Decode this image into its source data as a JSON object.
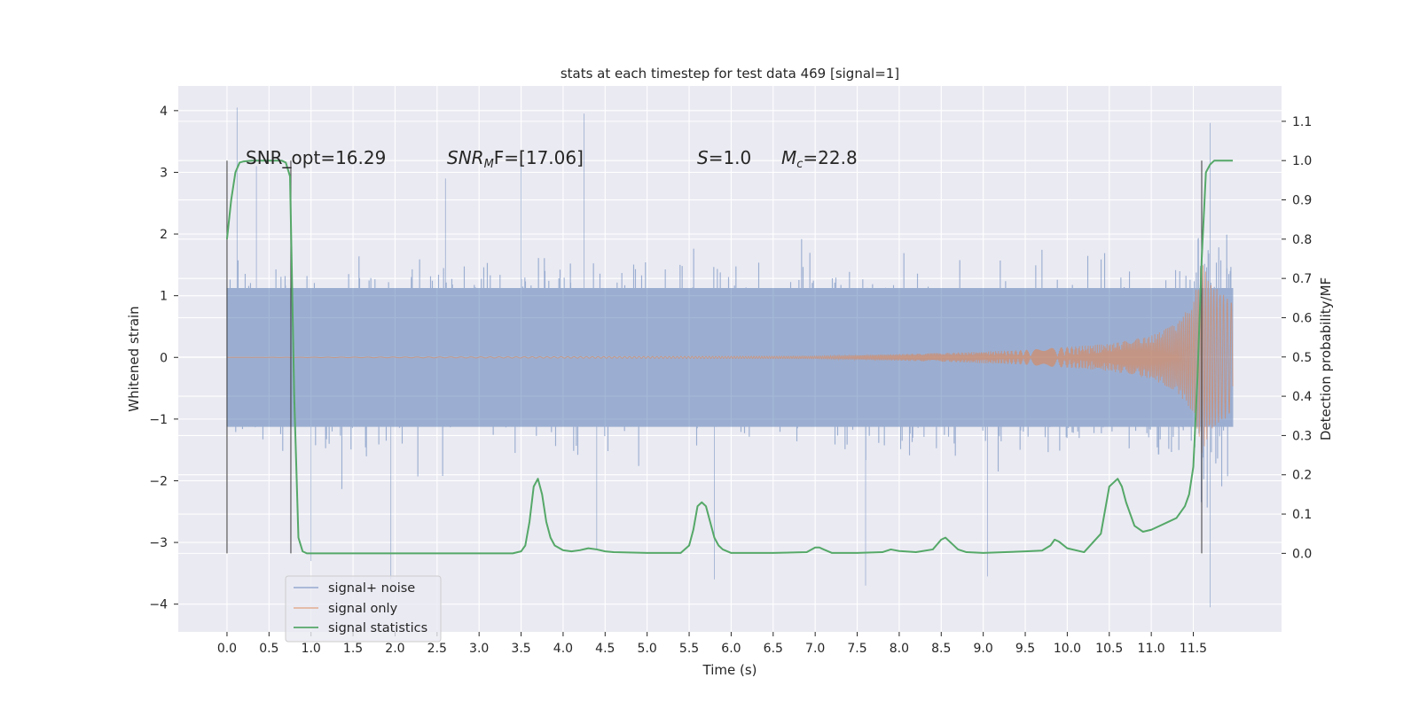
{
  "chart_data": {
    "type": "line",
    "title": "stats at each timestep for test data 469 [signal=1]",
    "xlabel": "Time (s)",
    "ylabel_left": "Whitened strain",
    "ylabel_right": "Detection probability/MF",
    "x_ticks": [
      "0.0",
      "0.5",
      "1.0",
      "1.5",
      "2.0",
      "2.5",
      "3.0",
      "3.5",
      "4.0",
      "4.5",
      "5.0",
      "5.5",
      "6.0",
      "6.5",
      "7.0",
      "7.5",
      "8.0",
      "8.5",
      "9.0",
      "9.5",
      "10.0",
      "10.5",
      "11.0",
      "11.5"
    ],
    "y_left_ticks": [
      "4",
      "3",
      "2",
      "1",
      "0",
      "−1",
      "−2",
      "−3",
      "−4"
    ],
    "y_right_ticks": [
      "1.1",
      "1.0",
      "0.9",
      "0.8",
      "0.7",
      "0.6",
      "0.5",
      "0.4",
      "0.3",
      "0.2",
      "0.1",
      "0.0"
    ],
    "xlim": [
      -0.58,
      12.55
    ],
    "ylim_left": [
      -4.45,
      4.4
    ],
    "ylim_right": [
      -0.2,
      1.19
    ],
    "grid": true,
    "legend_position": "lower-left",
    "annotations": {
      "snr_opt": "SNR_opt=16.29",
      "snr_mf": {
        "main": "SNR",
        "sub": "M",
        "rest": "F=[17.06]"
      },
      "s_value": {
        "main": "S",
        "rest": "=1.0"
      },
      "mc_value": {
        "main": "M",
        "sub": "c",
        "rest": "=22.8"
      }
    },
    "markers_x": [
      0.0,
      0.76,
      11.6
    ],
    "series": [
      {
        "name": "signal+ noise",
        "color": "#4c72b0",
        "axis": "left",
        "x_range": [
          0.0,
          11.97
        ],
        "typical_band": [
          -1.25,
          1.25
        ],
        "sample_spikes": [
          {
            "x": 0.12,
            "y": 4.05
          },
          {
            "x": 0.35,
            "y": 3.1
          },
          {
            "x": 1.0,
            "y": -3.3
          },
          {
            "x": 1.95,
            "y": -3.6
          },
          {
            "x": 2.6,
            "y": 2.9
          },
          {
            "x": 3.5,
            "y": 3.2
          },
          {
            "x": 4.25,
            "y": 3.95
          },
          {
            "x": 4.4,
            "y": -3.1
          },
          {
            "x": 5.8,
            "y": -3.6
          },
          {
            "x": 7.6,
            "y": -3.7
          },
          {
            "x": 9.05,
            "y": -3.55
          },
          {
            "x": 11.7,
            "y": 3.8
          },
          {
            "x": 11.7,
            "y": -4.05
          }
        ]
      },
      {
        "name": "signal only",
        "color": "#dd8452",
        "axis": "left",
        "amplitude_envelope": {
          "x": [
            0.0,
            7.0,
            8.5,
            9.5,
            10.5,
            11.0,
            11.3,
            11.5,
            11.6,
            11.7,
            11.97
          ],
          "amp": [
            0.0,
            0.02,
            0.07,
            0.12,
            0.22,
            0.35,
            0.55,
            0.9,
            1.55,
            1.2,
            0.9
          ]
        }
      },
      {
        "name": "signal statistics",
        "color": "#55a868",
        "axis": "right",
        "x": [
          0.0,
          0.05,
          0.1,
          0.15,
          0.2,
          0.3,
          0.4,
          0.5,
          0.6,
          0.65,
          0.7,
          0.75,
          0.8,
          0.85,
          0.9,
          0.95,
          1.0,
          1.5,
          2.0,
          2.5,
          3.0,
          3.4,
          3.5,
          3.55,
          3.6,
          3.65,
          3.7,
          3.75,
          3.8,
          3.85,
          3.9,
          4.0,
          4.1,
          4.2,
          4.3,
          4.4,
          4.5,
          4.6,
          5.0,
          5.4,
          5.5,
          5.55,
          5.6,
          5.65,
          5.7,
          5.75,
          5.8,
          5.85,
          5.9,
          6.0,
          6.5,
          6.9,
          7.0,
          7.05,
          7.1,
          7.2,
          7.5,
          7.8,
          7.9,
          8.0,
          8.2,
          8.4,
          8.5,
          8.55,
          8.6,
          8.7,
          8.8,
          9.0,
          9.5,
          9.7,
          9.8,
          9.85,
          9.9,
          10.0,
          10.2,
          10.4,
          10.5,
          10.6,
          10.65,
          10.7,
          10.75,
          10.8,
          10.9,
          11.0,
          11.1,
          11.2,
          11.3,
          11.4,
          11.45,
          11.5,
          11.55,
          11.6,
          11.65,
          11.7,
          11.75,
          11.8,
          11.9,
          11.97
        ],
        "values": [
          0.8,
          0.9,
          0.97,
          0.995,
          0.998,
          1.0,
          1.0,
          1.0,
          1.0,
          1.0,
          0.995,
          0.96,
          0.4,
          0.04,
          0.005,
          0.0,
          0.0,
          0.0,
          0.0,
          0.0,
          0.0,
          0.0,
          0.005,
          0.02,
          0.08,
          0.17,
          0.19,
          0.15,
          0.08,
          0.04,
          0.02,
          0.008,
          0.005,
          0.008,
          0.013,
          0.01,
          0.005,
          0.003,
          0.001,
          0.001,
          0.02,
          0.06,
          0.12,
          0.13,
          0.12,
          0.08,
          0.04,
          0.02,
          0.01,
          0.001,
          0.001,
          0.003,
          0.015,
          0.015,
          0.01,
          0.001,
          0.001,
          0.003,
          0.01,
          0.006,
          0.003,
          0.01,
          0.035,
          0.04,
          0.03,
          0.01,
          0.003,
          0.001,
          0.005,
          0.007,
          0.02,
          0.035,
          0.03,
          0.013,
          0.003,
          0.05,
          0.17,
          0.19,
          0.17,
          0.13,
          0.1,
          0.07,
          0.055,
          0.06,
          0.07,
          0.08,
          0.09,
          0.12,
          0.15,
          0.22,
          0.45,
          0.75,
          0.97,
          0.99,
          1.0,
          1.0,
          1.0,
          1.0
        ]
      }
    ]
  }
}
